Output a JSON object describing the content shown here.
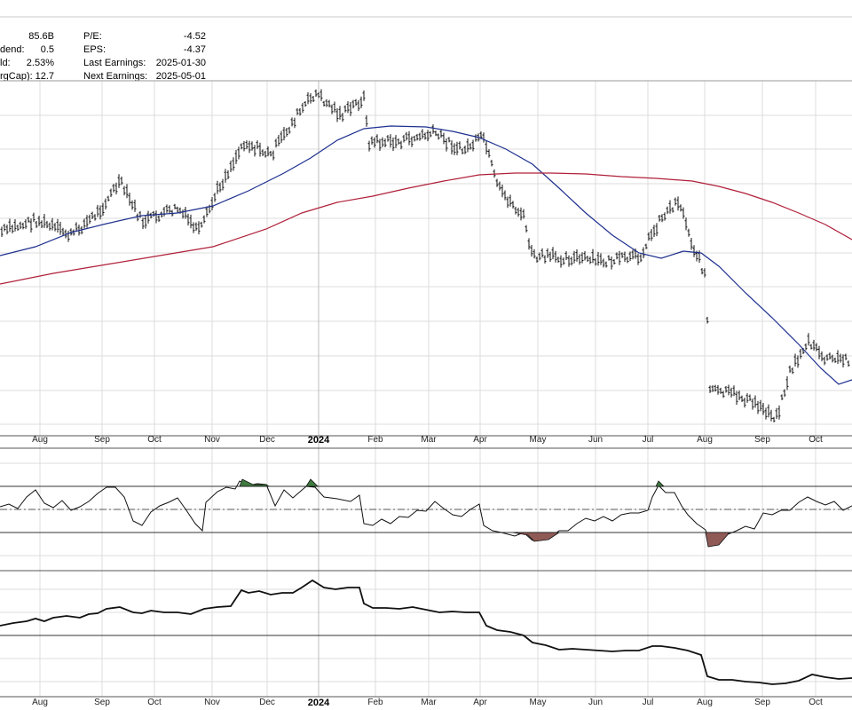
{
  "info": {
    "rows": [
      {
        "label": "dend:",
        "value": "0.5",
        "label2": "EPS:",
        "value2": "-4.37"
      },
      {
        "label": "ld:",
        "value": "2.53%",
        "label2": "Last Earnings:",
        "value2": "2025-01-30"
      },
      {
        "label": "rgCap):",
        "value": "12.7",
        "label2": "Next Earnings:",
        "value2": "2025-05-01"
      }
    ],
    "top_value": "85.6B",
    "top_label2": "P/E:",
    "top_value2": "-4.52"
  },
  "chart_data": {
    "type": "line",
    "x_ticks": [
      {
        "label": "Aug",
        "bold": false
      },
      {
        "label": "Sep",
        "bold": false
      },
      {
        "label": "Oct",
        "bold": false
      },
      {
        "label": "Nov",
        "bold": false
      },
      {
        "label": "Dec",
        "bold": false
      },
      {
        "label": "2024",
        "bold": true
      },
      {
        "label": "Feb",
        "bold": false
      },
      {
        "label": "Mar",
        "bold": false
      },
      {
        "label": "Apr",
        "bold": false
      },
      {
        "label": "May",
        "bold": false
      },
      {
        "label": "Jun",
        "bold": false
      },
      {
        "label": "Jul",
        "bold": false
      },
      {
        "label": "Aug",
        "bold": false
      },
      {
        "label": "Sep",
        "bold": false
      },
      {
        "label": "Oct",
        "bold": false
      }
    ],
    "price_panel": {
      "type": "ohlc",
      "close_trend": [
        [
          0,
          68
        ],
        [
          4,
          66
        ],
        [
          8,
          64
        ],
        [
          12,
          67
        ],
        [
          16,
          61
        ],
        [
          20,
          63
        ],
        [
          24,
          56
        ],
        [
          28,
          54
        ],
        [
          32,
          48
        ],
        [
          36,
          40
        ],
        [
          40,
          38
        ],
        [
          44,
          44
        ],
        [
          48,
          46
        ],
        [
          52,
          41
        ],
        [
          56,
          34
        ],
        [
          60,
          30
        ],
        [
          64,
          38
        ],
        [
          68,
          35
        ],
        [
          72,
          39
        ],
        [
          76,
          43
        ],
        [
          80,
          37
        ],
        [
          84,
          34
        ],
        [
          88,
          33
        ],
        [
          92,
          39
        ],
        [
          96,
          36
        ],
        [
          100,
          30
        ],
        [
          104,
          31
        ],
        [
          108,
          34
        ],
        [
          112,
          30
        ],
        [
          116,
          28
        ],
        [
          120,
          22
        ],
        [
          124,
          14
        ],
        [
          128,
          11
        ],
        [
          132,
          18
        ],
        [
          136,
          24
        ],
        [
          140,
          30
        ],
        [
          144,
          27
        ],
        [
          148,
          13
        ],
        [
          152,
          17
        ],
        [
          156,
          20
        ],
        [
          160,
          30
        ],
        [
          164,
          37
        ],
        [
          168,
          41
        ],
        [
          172,
          46
        ],
        [
          176,
          50
        ],
        [
          180,
          52
        ],
        [
          184,
          56
        ],
        [
          188,
          63
        ],
        [
          192,
          74
        ],
        [
          196,
          80
        ],
        [
          200,
          77
        ],
        [
          204,
          82
        ],
        [
          208,
          78
        ],
        [
          212,
          80
        ],
        [
          216,
          83
        ],
        [
          220,
          84
        ],
        [
          224,
          75
        ],
        [
          228,
          72
        ],
        [
          232,
          77
        ],
        [
          236,
          80
        ],
        [
          240,
          78
        ],
        [
          244,
          81
        ],
        [
          248,
          76
        ],
        [
          252,
          78
        ],
        [
          256,
          71
        ],
        [
          260,
          66
        ],
        [
          264,
          60
        ],
        [
          268,
          68
        ],
        [
          272,
          58
        ],
        [
          276,
          64
        ],
        [
          280,
          55
        ],
        [
          284,
          45
        ],
        [
          288,
          40
        ],
        [
          292,
          44
        ],
        [
          296,
          40
        ],
        [
          300,
          54
        ],
        [
          304,
          47
        ],
        [
          308,
          58
        ],
        [
          312,
          66
        ],
        [
          316,
          68
        ],
        [
          320,
          72
        ],
        [
          324,
          74
        ],
        [
          328,
          70
        ],
        [
          332,
          64
        ],
        [
          336,
          54
        ],
        [
          340,
          47
        ],
        [
          344,
          46
        ],
        [
          348,
          45
        ],
        [
          352,
          48
        ],
        [
          356,
          60
        ],
        [
          360,
          62
        ],
        [
          364,
          58
        ],
        [
          368,
          64
        ],
        [
          372,
          66
        ],
        [
          376,
          60
        ],
        [
          380,
          64
        ],
        [
          384,
          63
        ],
        [
          388,
          60
        ],
        [
          392,
          56
        ],
        [
          396,
          44
        ],
        [
          400,
          40
        ],
        [
          404,
          42
        ],
        [
          408,
          40
        ],
        [
          412,
          41
        ],
        [
          416,
          40
        ],
        [
          420,
          40
        ],
        [
          424,
          39
        ],
        [
          428,
          42
        ],
        [
          432,
          40
        ],
        [
          436,
          38
        ],
        [
          440,
          37
        ],
        [
          444,
          43
        ],
        [
          448,
          44
        ],
        [
          452,
          50
        ],
        [
          456,
          52
        ],
        [
          460,
          54
        ],
        [
          464,
          60
        ],
        [
          468,
          63
        ],
        [
          472,
          65
        ],
        [
          476,
          61
        ],
        [
          480,
          63
        ],
        [
          484,
          65
        ],
        [
          488,
          67
        ],
        [
          492,
          66
        ],
        [
          496,
          66
        ],
        [
          500,
          66
        ],
        [
          504,
          72
        ],
        [
          508,
          76
        ],
        [
          512,
          80
        ],
        [
          516,
          86
        ],
        [
          520,
          91
        ],
        [
          524,
          95
        ],
        [
          528,
          98
        ],
        [
          532,
          103
        ],
        [
          536,
          110
        ],
        [
          540,
          114
        ],
        [
          544,
          113
        ],
        [
          548,
          110
        ],
        [
          552,
          108
        ],
        [
          556,
          104
        ],
        [
          560,
          111
        ],
        [
          564,
          113
        ],
        [
          568,
          118
        ],
        [
          572,
          117
        ],
        [
          576,
          113
        ],
        [
          580,
          116
        ],
        [
          584,
          114
        ],
        [
          588,
          116
        ],
        [
          592,
          119
        ],
        [
          596,
          118
        ],
        [
          600,
          120
        ],
        [
          604,
          119
        ],
        [
          608,
          122
        ],
        [
          612,
          124
        ],
        [
          616,
          121
        ],
        [
          620,
          123
        ],
        [
          624,
          122
        ],
        [
          628,
          125
        ],
        [
          632,
          124
        ],
        [
          636,
          125
        ],
        [
          640,
          129
        ],
        [
          644,
          126
        ],
        [
          648,
          130
        ],
        [
          652,
          127
        ],
        [
          656,
          128
        ],
        [
          660,
          130
        ],
        [
          664,
          129
        ],
        [
          668,
          131
        ],
        [
          672,
          128
        ],
        [
          676,
          130
        ],
        [
          680,
          133
        ],
        [
          684,
          132
        ],
        [
          688,
          131
        ],
        [
          692,
          130
        ],
        [
          696,
          133
        ],
        [
          700,
          131
        ],
        [
          704,
          134
        ],
        [
          708,
          133
        ],
        [
          712,
          136
        ],
        [
          716,
          138
        ],
        [
          720,
          136
        ],
        [
          724,
          135
        ],
        [
          728,
          140
        ],
        [
          732,
          139
        ],
        [
          736,
          142
        ],
        [
          740,
          140
        ],
        [
          744,
          143
        ],
        [
          748,
          145
        ],
        [
          752,
          144
        ],
        [
          756,
          146
        ],
        [
          760,
          148
        ],
        [
          764,
          151
        ],
        [
          768,
          158
        ],
        [
          772,
          163
        ],
        [
          776,
          171
        ],
        [
          780,
          165
        ],
        [
          784,
          162
        ],
        [
          788,
          158
        ],
        [
          792,
          153
        ],
        [
          796,
          149
        ],
        [
          800,
          145
        ],
        [
          804,
          141
        ],
        [
          808,
          139
        ],
        [
          812,
          137
        ],
        [
          816,
          135
        ],
        [
          820,
          138
        ],
        [
          824,
          142
        ],
        [
          828,
          146
        ],
        [
          832,
          140
        ],
        [
          836,
          137
        ],
        [
          840,
          133
        ],
        [
          844,
          127
        ],
        [
          848,
          117
        ],
        [
          852,
          110
        ],
        [
          856,
          107
        ],
        [
          860,
          111
        ],
        [
          864,
          116
        ],
        [
          868,
          112
        ],
        [
          872,
          114
        ],
        [
          876,
          118
        ],
        [
          880,
          125
        ],
        [
          884,
          131
        ],
        [
          888,
          130
        ],
        [
          892,
          128
        ]
      ],
      "ohlc_segments_note": "",
      "ylim": [
        0,
        10
      ]
    },
    "indicator_panel": {
      "upper_band": 70,
      "lower_band": 30,
      "mid_line": 50
    },
    "relative_panel": {
      "ref_line": 0
    }
  }
}
